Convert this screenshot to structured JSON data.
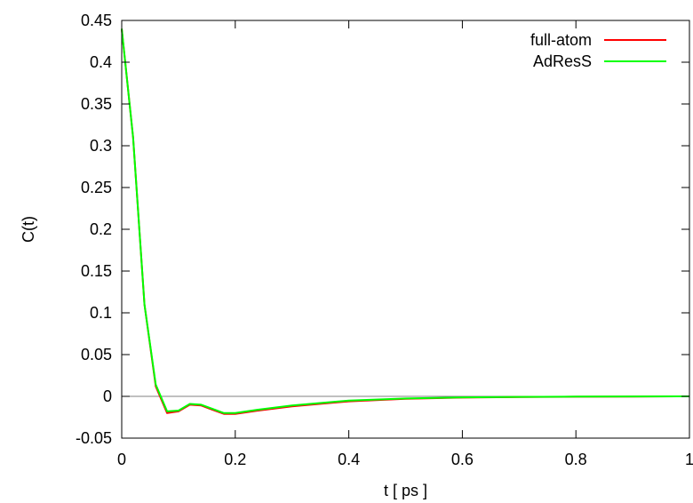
{
  "chart_data": {
    "type": "line",
    "title": "",
    "xlabel": "t [ ps ]",
    "ylabel": "C(t)",
    "xlim": [
      0,
      1
    ],
    "ylim": [
      -0.05,
      0.45
    ],
    "xticks": [
      {
        "value": 0,
        "label": "0"
      },
      {
        "value": 0.2,
        "label": "0.2"
      },
      {
        "value": 0.4,
        "label": "0.4"
      },
      {
        "value": 0.6,
        "label": "0.6"
      },
      {
        "value": 0.8,
        "label": "0.8"
      },
      {
        "value": 1,
        "label": "1"
      }
    ],
    "yticks": [
      {
        "value": -0.05,
        "label": "-0.05"
      },
      {
        "value": 0,
        "label": "0"
      },
      {
        "value": 0.05,
        "label": "0.05"
      },
      {
        "value": 0.1,
        "label": "0.1"
      },
      {
        "value": 0.15,
        "label": "0.15"
      },
      {
        "value": 0.2,
        "label": "0.2"
      },
      {
        "value": 0.25,
        "label": "0.25"
      },
      {
        "value": 0.3,
        "label": "0.3"
      },
      {
        "value": 0.35,
        "label": "0.35"
      },
      {
        "value": 0.4,
        "label": "0.4"
      },
      {
        "value": 0.45,
        "label": "0.45"
      }
    ],
    "grid": false,
    "zero_line": true,
    "legend_position": "top-right",
    "colors": {
      "zero_line": "#808080",
      "axes": "#000000"
    },
    "series": [
      {
        "name": "full-atom",
        "color": "#ff0000",
        "x": [
          0,
          0.02,
          0.04,
          0.06,
          0.08,
          0.1,
          0.12,
          0.14,
          0.16,
          0.18,
          0.2,
          0.24,
          0.3,
          0.4,
          0.5,
          0.6,
          0.7,
          0.8,
          0.9,
          1.0
        ],
        "y": [
          0.44,
          0.31,
          0.11,
          0.012,
          -0.02,
          -0.018,
          -0.01,
          -0.011,
          -0.016,
          -0.021,
          -0.021,
          -0.017,
          -0.012,
          -0.006,
          -0.003,
          -0.0015,
          -0.0008,
          -0.0004,
          -0.0002,
          0.0
        ]
      },
      {
        "name": "AdResS",
        "color": "#00ff00",
        "x": [
          0,
          0.02,
          0.04,
          0.06,
          0.08,
          0.1,
          0.12,
          0.14,
          0.16,
          0.18,
          0.2,
          0.24,
          0.3,
          0.4,
          0.5,
          0.6,
          0.7,
          0.8,
          0.9,
          1.0
        ],
        "y": [
          0.44,
          0.31,
          0.11,
          0.014,
          -0.018,
          -0.017,
          -0.009,
          -0.01,
          -0.015,
          -0.02,
          -0.02,
          -0.016,
          -0.011,
          -0.005,
          -0.0025,
          -0.0012,
          -0.0006,
          -0.0003,
          -0.0001,
          0.0
        ]
      }
    ]
  }
}
